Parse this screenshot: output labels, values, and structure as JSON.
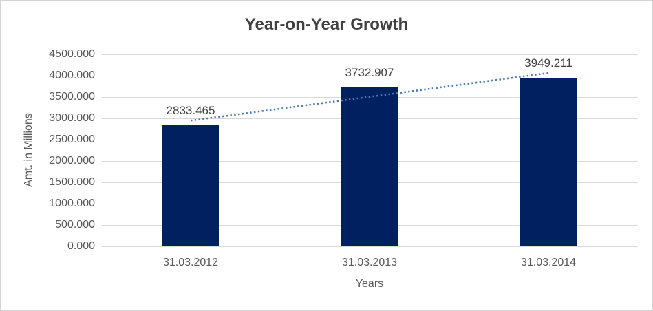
{
  "chart_data": {
    "type": "bar",
    "title": "Year-on-Year Growth",
    "categories": [
      "31.03.2012",
      "31.03.2013",
      "31.03.2014"
    ],
    "values": [
      2833.465,
      3732.907,
      3949.211
    ],
    "data_labels": [
      "2833.465",
      "3732.907",
      "3949.211"
    ],
    "xlabel": "Years",
    "ylabel": "Amt. in Millions",
    "ylim": [
      0,
      4500
    ],
    "ytick_step": 500,
    "ytick_labels": [
      "0.000",
      "500.000",
      "1000.000",
      "1500.000",
      "2000.000",
      "2500.000",
      "3000.000",
      "3500.000",
      "4000.000",
      "4500.000"
    ],
    "grid": true,
    "legend": "none",
    "trendline": {
      "type": "linear",
      "style": "dotted"
    },
    "colors": {
      "bar": "#002060",
      "trendline": "#4779C4",
      "gridline": "#D9D9D9",
      "axis_text": "#595959",
      "title_text": "#404040",
      "canvas_border": "#D3D3D3",
      "background": "#FFFFFF"
    }
  }
}
